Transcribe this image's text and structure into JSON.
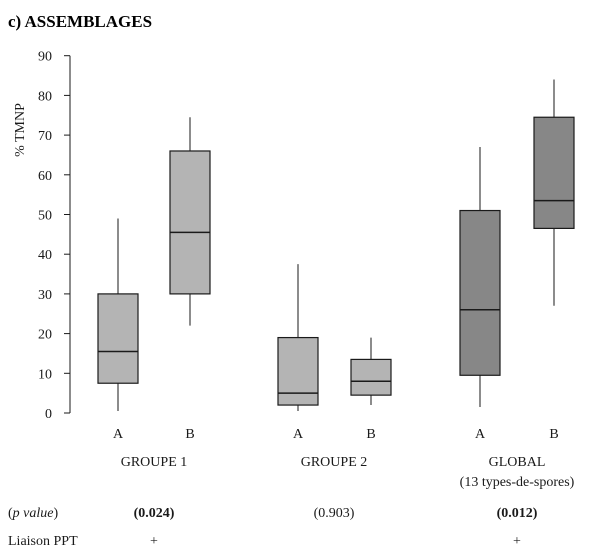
{
  "chart_data": {
    "type": "box",
    "title": "c) ASSEMBLAGES",
    "ylabel": "% TMNP",
    "ylim": [
      0,
      90
    ],
    "yticks": [
      0,
      10,
      20,
      30,
      40,
      50,
      60,
      70,
      80,
      90
    ],
    "boxes": [
      {
        "group": "GROUPE 1",
        "label": "A",
        "min": 0.5,
        "q1": 7.5,
        "median": 15.5,
        "q3": 30,
        "max": 49,
        "color": "#b4b4b4"
      },
      {
        "group": "GROUPE 1",
        "label": "B",
        "min": 22,
        "q1": 30,
        "median": 45.5,
        "q3": 66,
        "max": 74.5,
        "color": "#b4b4b4"
      },
      {
        "group": "GROUPE 2",
        "label": "A",
        "min": 0.5,
        "q1": 2,
        "median": 5,
        "q3": 19,
        "max": 37.5,
        "color": "#b4b4b4"
      },
      {
        "group": "GROUPE 2",
        "label": "B",
        "min": 2,
        "q1": 4.5,
        "median": 8,
        "q3": 13.5,
        "max": 19,
        "color": "#b4b4b4"
      },
      {
        "group": "GLOBAL",
        "label": "A",
        "min": 1.5,
        "q1": 9.5,
        "median": 26,
        "q3": 51,
        "max": 67,
        "color": "#878787"
      },
      {
        "group": "GLOBAL",
        "label": "B",
        "min": 27,
        "q1": 46.5,
        "median": 53.5,
        "q3": 74.5,
        "max": 84,
        "color": "#878787"
      }
    ],
    "groups": [
      {
        "name": "GROUPE 1",
        "subtitle": "",
        "p_value": "(0.024)",
        "p_bold": true,
        "liaison": "+"
      },
      {
        "name": "GROUPE 2",
        "subtitle": "",
        "p_value": "(0.903)",
        "p_bold": false,
        "liaison": ""
      },
      {
        "name": "GLOBAL",
        "subtitle": "(13 types-de-spores)",
        "p_value": "(0.012)",
        "p_bold": true,
        "liaison": "+"
      }
    ],
    "row_labels": {
      "p_value": "p value",
      "liaison": "Liaison PPT"
    }
  }
}
